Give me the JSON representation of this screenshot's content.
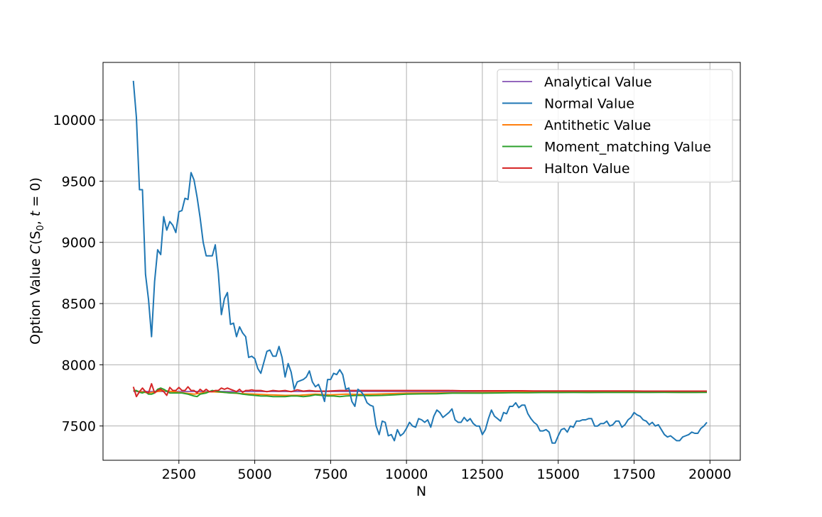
{
  "chart_data": {
    "type": "line",
    "xlabel": "N",
    "ylabel_parts": {
      "prefix": "Option Value ",
      "func": "C",
      "open": "(",
      "S": "S",
      "sub": "0",
      "mid": ", ",
      "t": "t",
      "eq": " = 0)"
    },
    "xlim": [
      0,
      21000
    ],
    "ylim": [
      7220,
      10470
    ],
    "xticks": [
      2500,
      5000,
      7500,
      10000,
      12500,
      15000,
      17500,
      20000
    ],
    "xtick_labels": [
      "2500",
      "5000",
      "7500",
      "10000",
      "12500",
      "15000",
      "17500",
      "20000"
    ],
    "yticks": [
      7500,
      8000,
      8500,
      9000,
      9500,
      10000
    ],
    "ytick_labels": [
      "7500",
      "8000",
      "8500",
      "9000",
      "9500",
      "10000"
    ],
    "grid": true,
    "legend_position": "upper right",
    "series": [
      {
        "name": "Analytical Value",
        "color": "#9467bd",
        "x": [
          1000,
          19900
        ],
        "y": [
          7782,
          7782
        ]
      },
      {
        "name": "Normal Value",
        "color": "#1f77b4",
        "x": [
          1000,
          1100,
          1200,
          1300,
          1400,
          1500,
          1600,
          1700,
          1800,
          1900,
          2000,
          2100,
          2200,
          2300,
          2400,
          2500,
          2600,
          2700,
          2800,
          2900,
          3000,
          3100,
          3200,
          3300,
          3400,
          3500,
          3600,
          3700,
          3800,
          3900,
          4000,
          4100,
          4200,
          4300,
          4400,
          4500,
          4600,
          4700,
          4800,
          4900,
          5000,
          5100,
          5200,
          5300,
          5400,
          5500,
          5600,
          5700,
          5800,
          5900,
          6000,
          6100,
          6200,
          6300,
          6400,
          6500,
          6600,
          6700,
          6800,
          6900,
          7000,
          7100,
          7200,
          7300,
          7400,
          7500,
          7600,
          7700,
          7800,
          7900,
          8000,
          8100,
          8200,
          8300,
          8400,
          8500,
          8600,
          8700,
          8800,
          8900,
          9000,
          9100,
          9200,
          9300,
          9400,
          9500,
          9600,
          9700,
          9800,
          9900,
          10000,
          10100,
          10200,
          10300,
          10400,
          10500,
          10600,
          10700,
          10800,
          10900,
          11000,
          11100,
          11200,
          11300,
          11400,
          11500,
          11600,
          11700,
          11800,
          11900,
          12000,
          12100,
          12200,
          12300,
          12400,
          12500,
          12600,
          12700,
          12800,
          12900,
          13000,
          13100,
          13200,
          13300,
          13400,
          13500,
          13600,
          13700,
          13800,
          13900,
          14000,
          14100,
          14200,
          14300,
          14400,
          14500,
          14600,
          14700,
          14800,
          14900,
          15000,
          15100,
          15200,
          15300,
          15400,
          15500,
          15600,
          15700,
          15800,
          15900,
          16000,
          16100,
          16200,
          16300,
          16400,
          16500,
          16600,
          16700,
          16800,
          16900,
          17000,
          17100,
          17200,
          17300,
          17400,
          17500,
          17600,
          17700,
          17800,
          17900,
          18000,
          18100,
          18200,
          18300,
          18400,
          18500,
          18600,
          18700,
          18800,
          18900,
          19000,
          19100,
          19200,
          19300,
          19400,
          19500,
          19600,
          19700,
          19800,
          19900
        ],
        "y": [
          10320,
          10020,
          9430,
          9430,
          8740,
          8530,
          8230,
          8680,
          8940,
          8900,
          9210,
          9100,
          9170,
          9140,
          9080,
          9250,
          9260,
          9360,
          9350,
          9570,
          9510,
          9370,
          9200,
          9000,
          8890,
          8890,
          8890,
          8980,
          8750,
          8410,
          8540,
          8590,
          8330,
          8340,
          8230,
          8310,
          8260,
          8230,
          8060,
          8070,
          8050,
          7970,
          7930,
          8020,
          8110,
          8120,
          8070,
          8070,
          8150,
          8060,
          7900,
          8010,
          7940,
          7800,
          7860,
          7870,
          7880,
          7900,
          7950,
          7860,
          7820,
          7840,
          7780,
          7700,
          7880,
          7880,
          7930,
          7920,
          7960,
          7920,
          7800,
          7810,
          7700,
          7660,
          7800,
          7780,
          7750,
          7690,
          7670,
          7660,
          7500,
          7430,
          7540,
          7530,
          7420,
          7430,
          7380,
          7470,
          7420,
          7440,
          7480,
          7530,
          7500,
          7490,
          7560,
          7550,
          7530,
          7550,
          7490,
          7580,
          7630,
          7610,
          7570,
          7590,
          7610,
          7640,
          7550,
          7530,
          7530,
          7570,
          7540,
          7560,
          7520,
          7500,
          7500,
          7430,
          7470,
          7560,
          7630,
          7580,
          7560,
          7540,
          7610,
          7600,
          7660,
          7660,
          7690,
          7650,
          7670,
          7670,
          7600,
          7560,
          7530,
          7510,
          7460,
          7460,
          7470,
          7450,
          7360,
          7360,
          7420,
          7470,
          7480,
          7450,
          7500,
          7490,
          7540,
          7540,
          7550,
          7550,
          7560,
          7560,
          7500,
          7500,
          7520,
          7520,
          7540,
          7500,
          7510,
          7540,
          7540,
          7490,
          7510,
          7550,
          7570,
          7610,
          7590,
          7580,
          7550,
          7540,
          7510,
          7530,
          7500,
          7510,
          7470,
          7430,
          7410,
          7420,
          7400,
          7380,
          7380,
          7410,
          7420,
          7430,
          7450,
          7440,
          7440,
          7480,
          7500,
          7530
        ]
      },
      {
        "name": "Antithetic Value",
        "color": "#ff7f0e",
        "x": [
          1000,
          1500,
          2000,
          2500,
          3000,
          3500,
          4000,
          4500,
          5000,
          5500,
          6000,
          6500,
          7000,
          7500,
          8000,
          8500,
          9000,
          10000,
          11000,
          12000,
          13000,
          14000,
          15000,
          16000,
          17000,
          18000,
          19000,
          19900
        ],
        "y": [
          7790,
          7770,
          7790,
          7775,
          7760,
          7780,
          7775,
          7765,
          7760,
          7755,
          7750,
          7752,
          7760,
          7755,
          7760,
          7758,
          7760,
          7768,
          7770,
          7772,
          7775,
          7776,
          7778,
          7777,
          7776,
          7778,
          7775,
          7776
        ]
      },
      {
        "name": "Moment_matching Value",
        "color": "#2ca02c",
        "x": [
          1000,
          1100,
          1200,
          1300,
          1400,
          1500,
          1600,
          1700,
          1800,
          1900,
          2000,
          2200,
          2400,
          2600,
          2800,
          3000,
          3100,
          3200,
          3400,
          3600,
          3800,
          4000,
          4200,
          4400,
          4600,
          4800,
          5000,
          5200,
          5400,
          5600,
          5800,
          6000,
          6200,
          6400,
          6600,
          6800,
          7000,
          7200,
          7400,
          7600,
          7800,
          8000,
          8400,
          8800,
          9200,
          9600,
          10000,
          10500,
          11000,
          11500,
          12000,
          12500,
          13000,
          13500,
          14000,
          14500,
          15000,
          15500,
          16000,
          16500,
          17000,
          17500,
          18000,
          18500,
          19000,
          19500,
          19900
        ],
        "y": [
          7790,
          7790,
          7775,
          7770,
          7780,
          7760,
          7760,
          7770,
          7800,
          7810,
          7800,
          7770,
          7770,
          7770,
          7760,
          7745,
          7740,
          7760,
          7770,
          7790,
          7780,
          7775,
          7770,
          7770,
          7760,
          7755,
          7750,
          7745,
          7745,
          7740,
          7740,
          7740,
          7745,
          7745,
          7740,
          7745,
          7755,
          7750,
          7745,
          7745,
          7740,
          7745,
          7750,
          7748,
          7750,
          7755,
          7760,
          7762,
          7763,
          7768,
          7768,
          7768,
          7770,
          7772,
          7772,
          7773,
          7773,
          7774,
          7773,
          7774,
          7774,
          7774,
          7774,
          7775,
          7774,
          7774,
          7775
        ]
      },
      {
        "name": "Halton Value",
        "color": "#d62728",
        "x": [
          1000,
          1100,
          1200,
          1300,
          1400,
          1500,
          1600,
          1700,
          1800,
          1900,
          2000,
          2100,
          2200,
          2300,
          2400,
          2500,
          2600,
          2700,
          2800,
          2900,
          3000,
          3100,
          3200,
          3300,
          3400,
          3500,
          3600,
          3700,
          3800,
          3900,
          4000,
          4100,
          4200,
          4300,
          4400,
          4500,
          4600,
          4700,
          4800,
          4900,
          5000,
          5200,
          5400,
          5600,
          5800,
          6000,
          6200,
          6400,
          6600,
          6800,
          7000,
          7400,
          7800,
          8200,
          8600,
          9000,
          9400,
          9800,
          10200,
          10600,
          11000,
          11400,
          11800,
          12200,
          12600,
          13000,
          13400,
          13800,
          14200,
          14600,
          15000,
          15400,
          15800,
          16200,
          16600,
          17000,
          17400,
          17800,
          18200,
          18600,
          19000,
          19400,
          19900
        ],
        "y": [
          7820,
          7740,
          7780,
          7810,
          7780,
          7770,
          7845,
          7770,
          7790,
          7800,
          7780,
          7750,
          7815,
          7790,
          7790,
          7815,
          7790,
          7790,
          7820,
          7790,
          7790,
          7770,
          7800,
          7780,
          7800,
          7780,
          7780,
          7790,
          7790,
          7810,
          7800,
          7810,
          7800,
          7790,
          7780,
          7800,
          7775,
          7790,
          7790,
          7795,
          7790,
          7790,
          7780,
          7790,
          7785,
          7790,
          7780,
          7795,
          7785,
          7790,
          7785,
          7785,
          7790,
          7790,
          7790,
          7790,
          7790,
          7790,
          7790,
          7790,
          7790,
          7790,
          7788,
          7788,
          7788,
          7788,
          7788,
          7788,
          7786,
          7786,
          7786,
          7786,
          7786,
          7786,
          7786,
          7786,
          7786,
          7785,
          7785,
          7785,
          7785,
          7785,
          7785
        ]
      }
    ]
  }
}
